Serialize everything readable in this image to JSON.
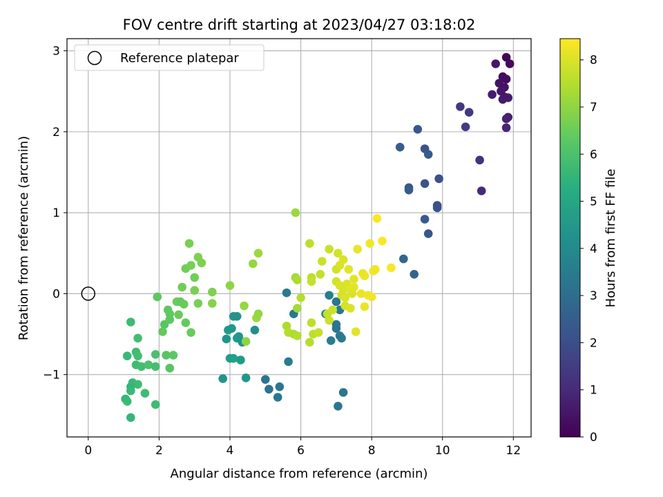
{
  "chart_data": {
    "type": "scatter",
    "title": "FOV centre drift starting at 2023/04/27 03:18:02",
    "xlabel": "Angular distance from reference (arcmin)",
    "ylabel": "Rotation from reference (arcmin)",
    "xlim": [
      -0.6,
      12.5
    ],
    "ylim": [
      -1.77,
      3.15
    ],
    "xticks": [
      0,
      2,
      4,
      6,
      8,
      10,
      12
    ],
    "yticks": [
      -1,
      0,
      1,
      2,
      3
    ],
    "grid": true,
    "legend": {
      "position": "top-left",
      "entries": [
        "Reference platepar"
      ]
    },
    "reference_point": {
      "x": 0,
      "y": 0,
      "label": "Reference platepar"
    },
    "colorbar": {
      "label": "Hours from first FF file",
      "colormap": "viridis",
      "range": [
        0,
        8.45
      ],
      "ticks": [
        0,
        1,
        2,
        3,
        4,
        5,
        6,
        7,
        8
      ]
    },
    "points": [
      {
        "x": 11.8,
        "y": 2.92,
        "c": 0.1
      },
      {
        "x": 11.9,
        "y": 2.84,
        "c": 0.2
      },
      {
        "x": 11.5,
        "y": 2.84,
        "c": 0.5
      },
      {
        "x": 11.7,
        "y": 2.68,
        "c": 0.3
      },
      {
        "x": 11.8,
        "y": 2.65,
        "c": 0.3
      },
      {
        "x": 11.6,
        "y": 2.6,
        "c": 0.4
      },
      {
        "x": 11.75,
        "y": 2.55,
        "c": 0.4
      },
      {
        "x": 11.65,
        "y": 2.5,
        "c": 0.5
      },
      {
        "x": 11.75,
        "y": 2.43,
        "c": 0.5
      },
      {
        "x": 11.7,
        "y": 2.4,
        "c": 0.6
      },
      {
        "x": 11.85,
        "y": 2.42,
        "c": 0.6
      },
      {
        "x": 11.4,
        "y": 2.46,
        "c": 0.7
      },
      {
        "x": 11.85,
        "y": 2.18,
        "c": 0.7
      },
      {
        "x": 11.8,
        "y": 2.16,
        "c": 0.8
      },
      {
        "x": 11.8,
        "y": 2.05,
        "c": 0.9
      },
      {
        "x": 10.5,
        "y": 2.31,
        "c": 1.4
      },
      {
        "x": 10.75,
        "y": 2.24,
        "c": 1.4
      },
      {
        "x": 10.65,
        "y": 2.06,
        "c": 1.5
      },
      {
        "x": 11.05,
        "y": 1.65,
        "c": 1.2
      },
      {
        "x": 11.1,
        "y": 1.27,
        "c": 1.0
      },
      {
        "x": 9.3,
        "y": 2.03,
        "c": 2.3
      },
      {
        "x": 8.8,
        "y": 1.81,
        "c": 2.5
      },
      {
        "x": 9.5,
        "y": 1.79,
        "c": 2.2
      },
      {
        "x": 9.6,
        "y": 1.72,
        "c": 2.4
      },
      {
        "x": 9.05,
        "y": 1.31,
        "c": 2.3
      },
      {
        "x": 9.05,
        "y": 1.28,
        "c": 2.4
      },
      {
        "x": 9.5,
        "y": 1.36,
        "c": 2.2
      },
      {
        "x": 9.9,
        "y": 1.42,
        "c": 2.1
      },
      {
        "x": 9.85,
        "y": 1.09,
        "c": 2.0
      },
      {
        "x": 9.85,
        "y": 1.06,
        "c": 2.1
      },
      {
        "x": 9.5,
        "y": 0.92,
        "c": 2.4
      },
      {
        "x": 9.6,
        "y": 0.74,
        "c": 2.3
      },
      {
        "x": 8.9,
        "y": 0.43,
        "c": 2.8
      },
      {
        "x": 9.2,
        "y": 0.24,
        "c": 2.7
      },
      {
        "x": 5.6,
        "y": 0.01,
        "c": 3.5
      },
      {
        "x": 5.8,
        "y": -0.25,
        "c": 3.4
      },
      {
        "x": 5.65,
        "y": -0.84,
        "c": 3.5
      },
      {
        "x": 6.8,
        "y": -0.02,
        "c": 3.6
      },
      {
        "x": 7.0,
        "y": -0.1,
        "c": 3.3
      },
      {
        "x": 7.1,
        "y": -0.2,
        "c": 3.4
      },
      {
        "x": 6.7,
        "y": -0.25,
        "c": 3.6
      },
      {
        "x": 7.0,
        "y": -0.38,
        "c": 3.4
      },
      {
        "x": 7.0,
        "y": -0.43,
        "c": 3.3
      },
      {
        "x": 7.1,
        "y": -0.52,
        "c": 3.5
      },
      {
        "x": 6.85,
        "y": -0.58,
        "c": 3.6
      },
      {
        "x": 7.15,
        "y": -0.55,
        "c": 3.4
      },
      {
        "x": 5.0,
        "y": -1.06,
        "c": 3.3
      },
      {
        "x": 5.1,
        "y": -1.18,
        "c": 3.2
      },
      {
        "x": 5.35,
        "y": -1.28,
        "c": 3.4
      },
      {
        "x": 5.4,
        "y": -1.15,
        "c": 3.3
      },
      {
        "x": 7.2,
        "y": -1.22,
        "c": 3.2
      },
      {
        "x": 7.05,
        "y": -1.39,
        "c": 3.3
      },
      {
        "x": 4.1,
        "y": -0.28,
        "c": 4.4
      },
      {
        "x": 4.2,
        "y": -0.28,
        "c": 4.3
      },
      {
        "x": 4.7,
        "y": -0.45,
        "c": 4.2
      },
      {
        "x": 3.95,
        "y": -0.45,
        "c": 4.6
      },
      {
        "x": 4.05,
        "y": -0.43,
        "c": 4.5
      },
      {
        "x": 4.2,
        "y": -0.55,
        "c": 4.6
      },
      {
        "x": 4.25,
        "y": -0.53,
        "c": 4.5
      },
      {
        "x": 3.9,
        "y": -0.56,
        "c": 4.4
      },
      {
        "x": 4.35,
        "y": -0.6,
        "c": 4.3
      },
      {
        "x": 4.0,
        "y": -0.8,
        "c": 4.7
      },
      {
        "x": 4.1,
        "y": -0.8,
        "c": 4.8
      },
      {
        "x": 4.3,
        "y": -0.82,
        "c": 4.6
      },
      {
        "x": 3.8,
        "y": -1.05,
        "c": 4.4
      },
      {
        "x": 4.45,
        "y": -1.04,
        "c": 4.5
      },
      {
        "x": 1.2,
        "y": -0.35,
        "c": 5.8
      },
      {
        "x": 1.4,
        "y": -0.55,
        "c": 5.9
      },
      {
        "x": 1.35,
        "y": -0.72,
        "c": 5.8
      },
      {
        "x": 1.1,
        "y": -0.77,
        "c": 5.7
      },
      {
        "x": 1.4,
        "y": -0.77,
        "c": 5.9
      },
      {
        "x": 1.35,
        "y": -0.88,
        "c": 5.8
      },
      {
        "x": 1.5,
        "y": -0.9,
        "c": 5.9
      },
      {
        "x": 1.25,
        "y": -1.1,
        "c": 5.7
      },
      {
        "x": 1.4,
        "y": -1.12,
        "c": 5.8
      },
      {
        "x": 1.2,
        "y": -1.15,
        "c": 5.6
      },
      {
        "x": 1.2,
        "y": -1.2,
        "c": 5.7
      },
      {
        "x": 1.6,
        "y": -1.23,
        "c": 5.8
      },
      {
        "x": 1.05,
        "y": -1.3,
        "c": 5.6
      },
      {
        "x": 1.1,
        "y": -1.33,
        "c": 5.7
      },
      {
        "x": 1.2,
        "y": -1.53,
        "c": 5.6
      },
      {
        "x": 1.9,
        "y": -1.37,
        "c": 5.8
      },
      {
        "x": 1.7,
        "y": -0.88,
        "c": 6.0
      },
      {
        "x": 1.9,
        "y": -0.9,
        "c": 5.9
      },
      {
        "x": 1.9,
        "y": -0.75,
        "c": 6.0
      },
      {
        "x": 1.95,
        "y": -0.04,
        "c": 6.3
      },
      {
        "x": 2.15,
        "y": -0.38,
        "c": 6.2
      },
      {
        "x": 2.1,
        "y": -0.47,
        "c": 6.4
      },
      {
        "x": 2.25,
        "y": -0.2,
        "c": 6.3
      },
      {
        "x": 2.3,
        "y": -0.25,
        "c": 6.4
      },
      {
        "x": 2.3,
        "y": -0.32,
        "c": 6.3
      },
      {
        "x": 2.2,
        "y": -0.76,
        "c": 6.2
      },
      {
        "x": 2.4,
        "y": -0.76,
        "c": 6.3
      },
      {
        "x": 2.3,
        "y": -0.92,
        "c": 6.2
      },
      {
        "x": 2.5,
        "y": -0.1,
        "c": 6.5
      },
      {
        "x": 2.6,
        "y": -0.1,
        "c": 6.4
      },
      {
        "x": 2.55,
        "y": -0.26,
        "c": 6.5
      },
      {
        "x": 2.75,
        "y": -0.36,
        "c": 6.4
      },
      {
        "x": 2.9,
        "y": -0.48,
        "c": 6.5
      },
      {
        "x": 2.65,
        "y": 0.08,
        "c": 6.6
      },
      {
        "x": 2.7,
        "y": -0.13,
        "c": 6.5
      },
      {
        "x": 2.75,
        "y": 0.31,
        "c": 6.6
      },
      {
        "x": 2.85,
        "y": 0.62,
        "c": 6.7
      },
      {
        "x": 2.9,
        "y": 0.35,
        "c": 6.7
      },
      {
        "x": 3.0,
        "y": 0.2,
        "c": 6.6
      },
      {
        "x": 3.0,
        "y": 0.04,
        "c": 6.7
      },
      {
        "x": 3.1,
        "y": 0.45,
        "c": 6.8
      },
      {
        "x": 3.2,
        "y": 0.38,
        "c": 6.8
      },
      {
        "x": 3.1,
        "y": -0.12,
        "c": 6.7
      },
      {
        "x": 3.5,
        "y": 0.02,
        "c": 6.8
      },
      {
        "x": 3.5,
        "y": -0.12,
        "c": 6.9
      },
      {
        "x": 4.0,
        "y": 0.1,
        "c": 7.0
      },
      {
        "x": 4.4,
        "y": -0.15,
        "c": 7.1
      },
      {
        "x": 4.45,
        "y": -0.59,
        "c": 7.0
      },
      {
        "x": 4.65,
        "y": 0.37,
        "c": 7.1
      },
      {
        "x": 4.75,
        "y": -0.3,
        "c": 7.2
      },
      {
        "x": 4.8,
        "y": 0.5,
        "c": 7.2
      },
      {
        "x": 4.8,
        "y": -0.25,
        "c": 7.1
      },
      {
        "x": 5.85,
        "y": 1.0,
        "c": 7.2
      },
      {
        "x": 5.85,
        "y": 0.2,
        "c": 7.3
      },
      {
        "x": 5.9,
        "y": 0.17,
        "c": 7.4
      },
      {
        "x": 5.9,
        "y": -0.18,
        "c": 7.3
      },
      {
        "x": 5.6,
        "y": -0.4,
        "c": 7.4
      },
      {
        "x": 5.65,
        "y": -0.48,
        "c": 7.5
      },
      {
        "x": 5.8,
        "y": -0.5,
        "c": 7.4
      },
      {
        "x": 5.9,
        "y": -0.52,
        "c": 7.5
      },
      {
        "x": 6.0,
        "y": -0.05,
        "c": 7.5
      },
      {
        "x": 6.25,
        "y": 0.62,
        "c": 7.6
      },
      {
        "x": 6.3,
        "y": 0.2,
        "c": 7.6
      },
      {
        "x": 6.3,
        "y": 0.15,
        "c": 7.7
      },
      {
        "x": 6.3,
        "y": -0.36,
        "c": 7.6
      },
      {
        "x": 6.25,
        "y": -0.6,
        "c": 7.5
      },
      {
        "x": 6.35,
        "y": -0.5,
        "c": 7.6
      },
      {
        "x": 6.5,
        "y": -0.48,
        "c": 7.7
      },
      {
        "x": 6.55,
        "y": 0.24,
        "c": 7.7
      },
      {
        "x": 6.6,
        "y": 0.4,
        "c": 7.8
      },
      {
        "x": 6.8,
        "y": 0.55,
        "c": 7.8
      },
      {
        "x": 6.75,
        "y": -0.25,
        "c": 7.7
      },
      {
        "x": 6.8,
        "y": -0.33,
        "c": 7.8
      },
      {
        "x": 6.9,
        "y": -0.2,
        "c": 7.8
      },
      {
        "x": 7.0,
        "y": 0.3,
        "c": 7.9
      },
      {
        "x": 7.05,
        "y": 0.5,
        "c": 7.9
      },
      {
        "x": 7.1,
        "y": 0.35,
        "c": 8.0
      },
      {
        "x": 7.0,
        "y": 0.15,
        "c": 7.9
      },
      {
        "x": 7.1,
        "y": 0.1,
        "c": 8.0
      },
      {
        "x": 7.2,
        "y": 0.42,
        "c": 8.0
      },
      {
        "x": 7.2,
        "y": 0.05,
        "c": 8.0
      },
      {
        "x": 7.15,
        "y": -0.02,
        "c": 7.9
      },
      {
        "x": 7.25,
        "y": -0.05,
        "c": 8.0
      },
      {
        "x": 7.25,
        "y": -0.15,
        "c": 7.9
      },
      {
        "x": 7.3,
        "y": 0.12,
        "c": 8.0
      },
      {
        "x": 7.35,
        "y": 0.3,
        "c": 8.1
      },
      {
        "x": 7.4,
        "y": 0.05,
        "c": 8.1
      },
      {
        "x": 7.45,
        "y": 0.0,
        "c": 8.0
      },
      {
        "x": 7.5,
        "y": 0.18,
        "c": 8.1
      },
      {
        "x": 7.5,
        "y": 0.08,
        "c": 8.1
      },
      {
        "x": 7.4,
        "y": -0.18,
        "c": 8.0
      },
      {
        "x": 7.55,
        "y": -0.47,
        "c": 8.1
      },
      {
        "x": 7.6,
        "y": 0.55,
        "c": 8.2
      },
      {
        "x": 7.7,
        "y": 0.0,
        "c": 8.2
      },
      {
        "x": 7.75,
        "y": 0.25,
        "c": 8.2
      },
      {
        "x": 7.8,
        "y": 0.22,
        "c": 8.2
      },
      {
        "x": 7.8,
        "y": -0.16,
        "c": 8.2
      },
      {
        "x": 7.9,
        "y": -0.02,
        "c": 8.3
      },
      {
        "x": 8.0,
        "y": -0.04,
        "c": 8.3
      },
      {
        "x": 7.95,
        "y": 0.62,
        "c": 8.3
      },
      {
        "x": 8.05,
        "y": 0.28,
        "c": 8.3
      },
      {
        "x": 8.1,
        "y": 0.3,
        "c": 8.3
      },
      {
        "x": 8.15,
        "y": 0.93,
        "c": 8.4
      },
      {
        "x": 8.3,
        "y": 0.65,
        "c": 8.4
      },
      {
        "x": 8.55,
        "y": 0.32,
        "c": 8.4
      }
    ]
  }
}
